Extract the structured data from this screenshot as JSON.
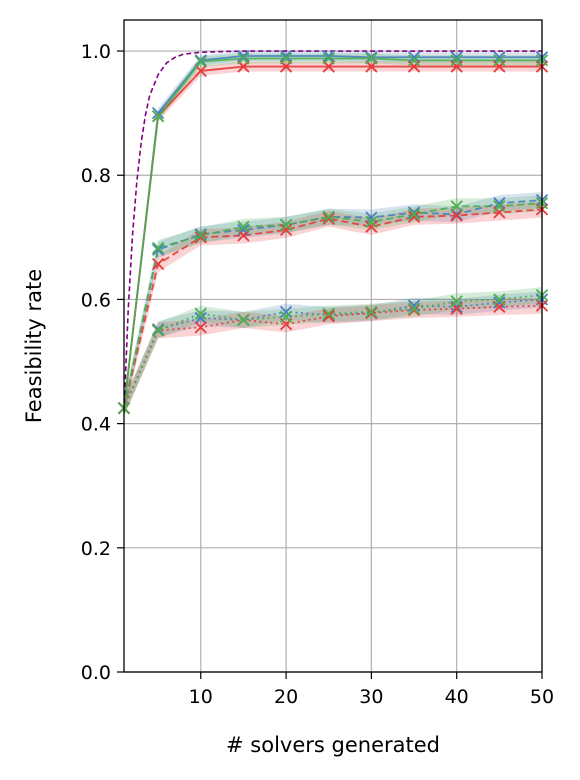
{
  "chart_data": {
    "type": "line",
    "title": "",
    "xlabel": "# solvers generated",
    "ylabel": "Feasibility rate",
    "xlim": [
      1,
      50
    ],
    "ylim": [
      0.0,
      1.05
    ],
    "xticks": [
      10,
      20,
      30,
      40,
      50
    ],
    "xtick_labels": [
      "10",
      "20",
      "30",
      "40",
      "50"
    ],
    "yticks": [
      0.0,
      0.2,
      0.4,
      0.6,
      0.8,
      1.0
    ],
    "ytick_labels": [
      "0.0",
      "0.2",
      "0.4",
      "0.6",
      "0.8",
      "1.0"
    ],
    "grid": true,
    "legend": "none",
    "x": [
      1,
      5,
      10,
      15,
      20,
      25,
      30,
      35,
      40,
      45,
      50
    ],
    "reference_curve": {
      "color": "#800080",
      "style": "dashed",
      "x": [
        1,
        1.5,
        2,
        2.5,
        3,
        3.5,
        4,
        5,
        6,
        7,
        8,
        10,
        12,
        15,
        20,
        25,
        30,
        35,
        40,
        45,
        50
      ],
      "values": [
        0.42,
        0.585,
        0.704,
        0.789,
        0.851,
        0.896,
        0.928,
        0.962,
        0.981,
        0.99,
        0.995,
        0.998,
        0.999,
        1.0,
        1.0,
        1.0,
        1.0,
        1.0,
        1.0,
        1.0,
        1.0
      ]
    },
    "series": [
      {
        "color": "#4a7fc0",
        "style": "solid",
        "marker": "x",
        "band": 0.008,
        "values": [
          0.425,
          0.9,
          0.985,
          0.992,
          0.992,
          0.992,
          0.99,
          0.99,
          0.99,
          0.99,
          0.99
        ]
      },
      {
        "color": "#e83a3a",
        "style": "solid",
        "marker": "x",
        "band": 0.008,
        "values": [
          0.425,
          0.895,
          0.968,
          0.975,
          0.975,
          0.975,
          0.975,
          0.975,
          0.975,
          0.975,
          0.975
        ]
      },
      {
        "color": "#4caf50",
        "style": "solid",
        "marker": "x",
        "band": 0.008,
        "values": [
          0.425,
          0.895,
          0.983,
          0.988,
          0.988,
          0.988,
          0.988,
          0.985,
          0.985,
          0.985,
          0.985
        ]
      },
      {
        "color": "#4a7fc0",
        "style": "dashed",
        "marker": "x",
        "band": 0.013,
        "values": [
          0.425,
          0.68,
          0.705,
          0.712,
          0.72,
          0.733,
          0.732,
          0.74,
          0.737,
          0.755,
          0.76
        ]
      },
      {
        "color": "#e83a3a",
        "style": "dashed",
        "marker": "x",
        "band": 0.013,
        "values": [
          0.425,
          0.657,
          0.7,
          0.703,
          0.712,
          0.73,
          0.717,
          0.733,
          0.735,
          0.74,
          0.745
        ]
      },
      {
        "color": "#4caf50",
        "style": "dashed",
        "marker": "x",
        "band": 0.013,
        "values": [
          0.425,
          0.683,
          0.703,
          0.717,
          0.72,
          0.733,
          0.725,
          0.737,
          0.75,
          0.75,
          0.755
        ]
      },
      {
        "color": "#4a7fc0",
        "style": "dotted",
        "marker": "x",
        "band": 0.013,
        "values": [
          0.425,
          0.552,
          0.57,
          0.567,
          0.58,
          0.575,
          0.578,
          0.59,
          0.588,
          0.595,
          0.6
        ]
      },
      {
        "color": "#e83a3a",
        "style": "dotted",
        "marker": "x",
        "band": 0.013,
        "values": [
          0.425,
          0.55,
          0.555,
          0.567,
          0.56,
          0.573,
          0.578,
          0.583,
          0.585,
          0.588,
          0.59
        ]
      },
      {
        "color": "#4caf50",
        "style": "dotted",
        "marker": "x",
        "band": 0.013,
        "values": [
          0.425,
          0.55,
          0.577,
          0.567,
          0.572,
          0.577,
          0.58,
          0.585,
          0.597,
          0.6,
          0.607
        ]
      }
    ]
  }
}
